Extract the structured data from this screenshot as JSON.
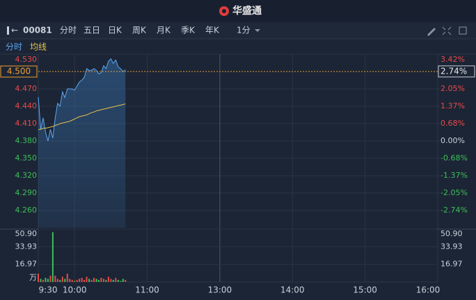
{
  "header": {
    "logo": "华盛通"
  },
  "toolbar": {
    "code": "00081",
    "periods": [
      "分时",
      "五日",
      "日K",
      "周K",
      "月K",
      "季K",
      "年K"
    ],
    "active": 0,
    "interval": "1分"
  },
  "chart_data": {
    "type": "line",
    "x": [
      0,
      2,
      4,
      6,
      8,
      10,
      12,
      14,
      16,
      18,
      20,
      22,
      24,
      26,
      28,
      30,
      32,
      34,
      36,
      38,
      40,
      42,
      44,
      46,
      48,
      50,
      52,
      54,
      56,
      58,
      60,
      62,
      64,
      66,
      68,
      70,
      72
    ],
    "xlim": [
      0,
      330
    ],
    "xticks": [
      {
        "value": 0,
        "label": "9:30"
      },
      {
        "value": 30,
        "label": "10:00"
      },
      {
        "value": 90,
        "label": "11:00"
      },
      {
        "value": 150,
        "label": "13:00"
      },
      {
        "value": 210,
        "label": "14:00"
      },
      {
        "value": 270,
        "label": "15:00"
      },
      {
        "value": 330,
        "label": "16:00"
      }
    ],
    "series": [
      {
        "name": "分时",
        "color": "#5ba9f5",
        "values": [
          4.456,
          4.4,
          4.42,
          4.395,
          4.38,
          4.4,
          4.385,
          4.42,
          4.445,
          4.44,
          4.465,
          4.455,
          4.47,
          4.47,
          4.47,
          4.468,
          4.475,
          4.482,
          4.485,
          4.49,
          4.505,
          4.502,
          4.502,
          4.505,
          4.502,
          4.496,
          4.498,
          4.51,
          4.505,
          4.518,
          4.522,
          4.514,
          4.52,
          4.508,
          4.505,
          4.5,
          4.503
        ]
      },
      {
        "name": "均线",
        "color": "#e8c34a",
        "values": [
          4.4,
          4.4,
          4.402,
          4.402,
          4.403,
          4.404,
          4.405,
          4.407,
          4.408,
          4.41,
          4.411,
          4.412,
          4.413,
          4.414,
          4.416,
          4.418,
          4.42,
          4.422,
          4.423,
          4.424,
          4.425,
          4.427,
          4.429,
          4.43,
          4.432,
          4.433,
          4.434,
          4.435,
          4.436,
          4.437,
          4.438,
          4.439,
          4.44,
          4.441,
          4.442,
          4.443,
          4.444
        ]
      }
    ],
    "ylim": [
      4.23,
      4.53
    ],
    "yticks": [
      {
        "value": 4.53,
        "label": "4.530"
      },
      {
        "value": 4.47,
        "label": "4.470"
      },
      {
        "value": 4.44,
        "label": "4.440"
      },
      {
        "value": 4.41,
        "label": "4.410"
      },
      {
        "value": 4.38,
        "label": "4.380"
      },
      {
        "value": 4.35,
        "label": "4.350"
      },
      {
        "value": 4.32,
        "label": "4.320"
      },
      {
        "value": 4.29,
        "label": "4.290"
      },
      {
        "value": 4.26,
        "label": "4.260"
      }
    ],
    "y2lim": [
      -3.42,
      3.42
    ],
    "y2ticks": [
      {
        "value": 3.42,
        "label": "3.42%"
      },
      {
        "value": 2.05,
        "label": "2.05%"
      },
      {
        "value": 1.37,
        "label": "1.37%"
      },
      {
        "value": 0.68,
        "label": "0.68%"
      },
      {
        "value": 0,
        "label": "0.00%"
      },
      {
        "value": -0.68,
        "label": "-0.68%"
      },
      {
        "value": -1.37,
        "label": "-1.37%"
      },
      {
        "value": -2.05,
        "label": "-2.05%"
      },
      {
        "value": -2.74,
        "label": "-2.74%"
      }
    ],
    "current": {
      "value": 4.5,
      "label": "4.500"
    },
    "current_change": {
      "value": 2.74,
      "label": "2.74%"
    },
    "up_color": "#e84a4a",
    "down_color": "#3cbf5a",
    "grid": true,
    "volume": {
      "values": [
        8,
        3,
        2,
        4,
        3,
        6,
        48,
        6,
        3,
        2,
        5,
        3,
        8,
        3,
        2,
        1,
        2,
        3,
        4,
        2,
        5,
        3,
        2,
        4,
        3,
        2,
        4,
        3,
        2,
        5,
        3,
        2,
        4,
        2,
        1,
        3,
        2
      ],
      "ylim": [
        0,
        50.9
      ],
      "yticks": [
        {
          "value": 50.9,
          "label": "50.90"
        },
        {
          "value": 33.93,
          "label": "33.93"
        },
        {
          "value": 16.97,
          "label": "16.97"
        }
      ],
      "unit": "万"
    }
  }
}
